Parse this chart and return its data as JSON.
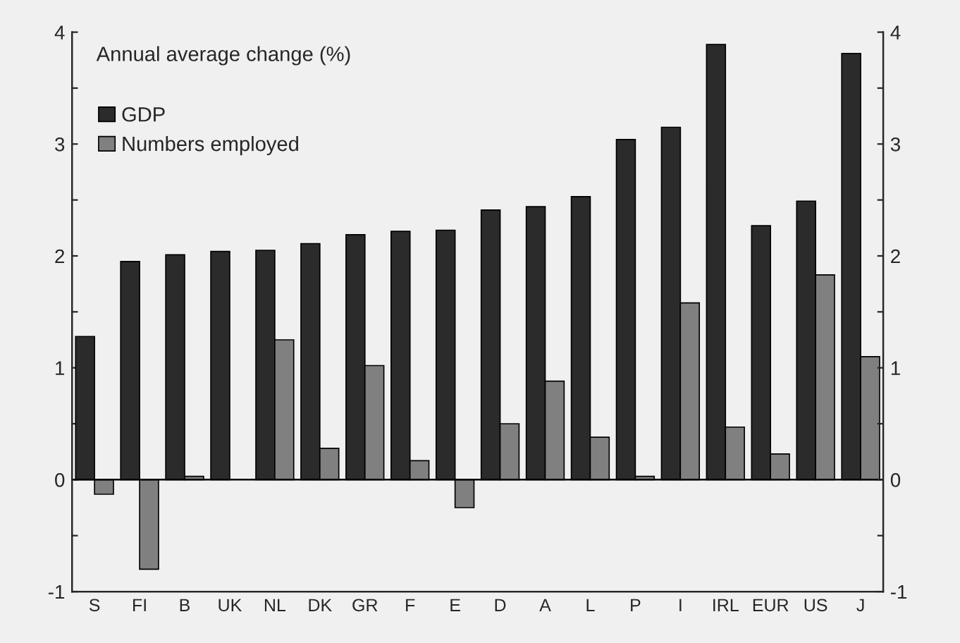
{
  "chart_data": {
    "type": "bar",
    "title": "Annual average change (%)",
    "categories": [
      "S",
      "FI",
      "B",
      "UK",
      "NL",
      "DK",
      "GR",
      "F",
      "E",
      "D",
      "A",
      "L",
      "P",
      "I",
      "IRL",
      "EUR",
      "US",
      "J"
    ],
    "series": [
      {
        "name": "GDP",
        "color": "#2b2b2b",
        "values": [
          1.28,
          1.95,
          2.01,
          2.04,
          2.05,
          2.11,
          2.19,
          2.22,
          2.23,
          2.41,
          2.44,
          2.53,
          3.04,
          3.15,
          3.89,
          2.27,
          2.49,
          3.81
        ]
      },
      {
        "name": "Numbers employed",
        "color": "#808080",
        "values": [
          -0.13,
          -0.8,
          0.03,
          null,
          1.25,
          0.28,
          1.02,
          0.17,
          -0.25,
          0.5,
          0.88,
          0.38,
          0.03,
          1.58,
          0.47,
          0.23,
          1.83,
          1.1
        ]
      }
    ],
    "ylim": [
      -1,
      4
    ],
    "yticks": [
      -1,
      {
        "value": -0.5,
        "label": null
      },
      0,
      {
        "value": 0.5,
        "label": null
      },
      1,
      {
        "value": 1.5,
        "label": null
      },
      2,
      {
        "value": 2.5,
        "label": null
      },
      3,
      {
        "value": 3.5,
        "label": null
      },
      4
    ],
    "y2lim": [
      -1,
      4
    ],
    "y2ticks": [
      -1,
      {
        "value": -0.5,
        "label": null
      },
      0,
      {
        "value": 0.5,
        "label": null
      },
      1,
      {
        "value": 1.5,
        "label": null
      },
      2,
      {
        "value": 2.5,
        "label": null
      },
      3,
      {
        "value": 3.5,
        "label": null
      },
      4
    ],
    "ref_lines": [
      {
        "axis": "y",
        "value": 0,
        "color": "#000000",
        "line_style": "solid"
      }
    ],
    "legend": "top left",
    "grid": false
  }
}
